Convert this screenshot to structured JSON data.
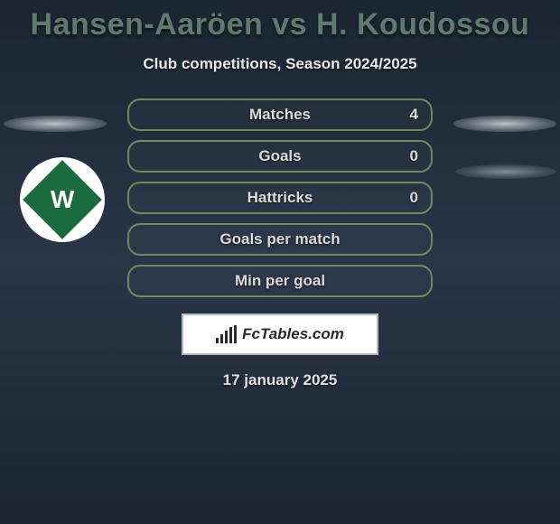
{
  "header": {
    "title": "Hansen-Aaröen vs H. Koudossou",
    "subtitle": "Club competitions, Season 2024/2025"
  },
  "stats": [
    {
      "label": "Matches",
      "value": "4"
    },
    {
      "label": "Goals",
      "value": "0"
    },
    {
      "label": "Hattricks",
      "value": "0"
    },
    {
      "label": "Goals per match",
      "value": ""
    },
    {
      "label": "Min per goal",
      "value": ""
    }
  ],
  "brand": {
    "text": "FcTables.com"
  },
  "date": "17 january 2025",
  "colors": {
    "title": "#5e7a71",
    "stat_border": "#718a5a",
    "badge_bg": "#ffffff",
    "diamond": "#1a6b3d",
    "background_top": "#1a2530",
    "background_mid": "#2a3548"
  },
  "club": {
    "letter": "W"
  }
}
